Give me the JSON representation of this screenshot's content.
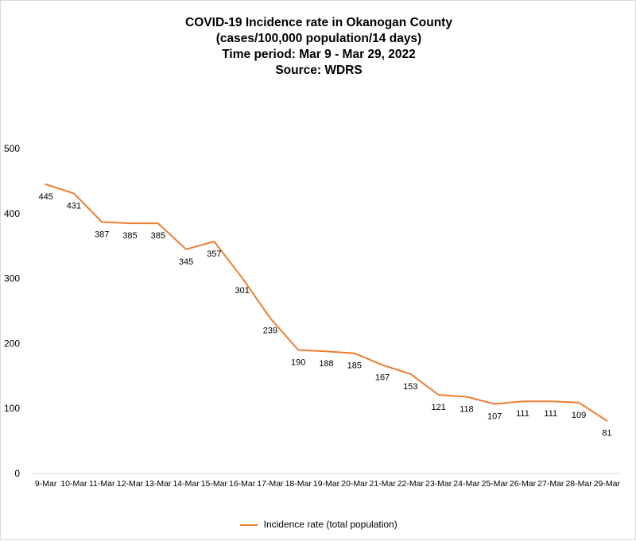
{
  "chart_data": {
    "type": "line",
    "title": [
      "COVID-19 Incidence rate in Okanogan County",
      "(cases/100,000 population/14 days)",
      "Time period: Mar 9 - Mar 29, 2022",
      "Source: WDRS"
    ],
    "categories": [
      "9-Mar",
      "10-Mar",
      "11-Mar",
      "12-Mar",
      "13-Mar",
      "14-Mar",
      "15-Mar",
      "16-Mar",
      "17-Mar",
      "18-Mar",
      "19-Mar",
      "20-Mar",
      "21-Mar",
      "22-Mar",
      "23-Mar",
      "24-Mar",
      "25-Mar",
      "26-Mar",
      "27-Mar",
      "28-Mar",
      "29-Mar"
    ],
    "series": [
      {
        "name": "Incidence rate (total population)",
        "color": "#ED7D31",
        "values": [
          445,
          431,
          387,
          385,
          385,
          345,
          357,
          301,
          239,
          190,
          188,
          185,
          167,
          153,
          121,
          118,
          107,
          111,
          111,
          109,
          81
        ]
      }
    ],
    "ylim": [
      0,
      500
    ],
    "yticks": [
      0,
      100,
      200,
      300,
      400,
      500
    ],
    "xlabel": "",
    "ylabel": "",
    "grid": false,
    "legend": "bottom",
    "data_labels": true
  }
}
